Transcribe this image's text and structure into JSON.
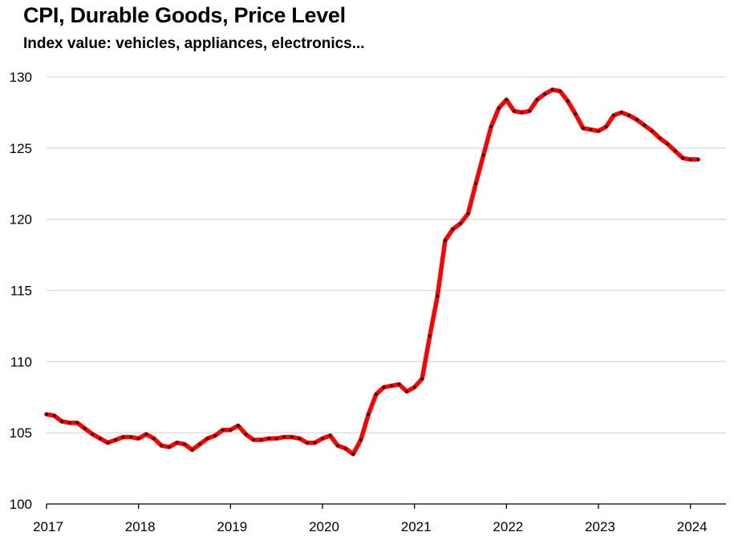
{
  "chart_data": {
    "type": "line",
    "title": "CPI, Durable Goods, Price Level",
    "subtitle": "Index value: vehicles, appliances,  electronics...",
    "xlabel": "",
    "ylabel": "",
    "ylim": [
      100,
      130
    ],
    "xlim": [
      2017.0,
      2024.2
    ],
    "y_ticks": [
      100,
      105,
      110,
      115,
      120,
      125,
      130
    ],
    "x_ticks": [
      2017,
      2018,
      2019,
      2020,
      2021,
      2022,
      2023,
      2024
    ],
    "grid": "horizontal",
    "legend": "none",
    "colors": {
      "line": "#ff0000",
      "marker": "#1a1a1a",
      "grid": "#d9d9d9",
      "axis": "#000000"
    },
    "series": [
      {
        "x": [
          "2017-01",
          "2017-02",
          "2017-03",
          "2017-04",
          "2017-05",
          "2017-06",
          "2017-07",
          "2017-08",
          "2017-09",
          "2017-10",
          "2017-11",
          "2017-12",
          "2018-01",
          "2018-02",
          "2018-03",
          "2018-04",
          "2018-05",
          "2018-06",
          "2018-07",
          "2018-08",
          "2018-09",
          "2018-10",
          "2018-11",
          "2018-12",
          "2019-01",
          "2019-02",
          "2019-03",
          "2019-04",
          "2019-05",
          "2019-06",
          "2019-07",
          "2019-08",
          "2019-09",
          "2019-10",
          "2019-11",
          "2019-12",
          "2020-01",
          "2020-02",
          "2020-03",
          "2020-04",
          "2020-05",
          "2020-06",
          "2020-07",
          "2020-08",
          "2020-09",
          "2020-10",
          "2020-11",
          "2020-12",
          "2021-01",
          "2021-02",
          "2021-03",
          "2021-04",
          "2021-05",
          "2021-06",
          "2021-07",
          "2021-08",
          "2021-09",
          "2021-10",
          "2021-11",
          "2021-12",
          "2022-01",
          "2022-02",
          "2022-03",
          "2022-04",
          "2022-05",
          "2022-06",
          "2022-07",
          "2022-08",
          "2022-09",
          "2022-10",
          "2022-11",
          "2022-12",
          "2023-01",
          "2023-02",
          "2023-03",
          "2023-04",
          "2023-05",
          "2023-06",
          "2023-07",
          "2023-08",
          "2023-09",
          "2023-10",
          "2023-11",
          "2023-12",
          "2024-01",
          "2024-02"
        ],
        "values": [
          106.3,
          106.2,
          105.8,
          105.7,
          105.7,
          105.3,
          104.9,
          104.6,
          104.3,
          104.5,
          104.7,
          104.7,
          104.6,
          104.9,
          104.6,
          104.1,
          104.0,
          104.3,
          104.2,
          103.8,
          104.2,
          104.6,
          104.8,
          105.2,
          105.2,
          105.5,
          104.9,
          104.5,
          104.5,
          104.6,
          104.6,
          104.7,
          104.7,
          104.6,
          104.3,
          104.3,
          104.6,
          104.8,
          104.1,
          103.9,
          103.5,
          104.5,
          106.3,
          107.7,
          108.2,
          108.3,
          108.4,
          107.9,
          108.2,
          108.8,
          111.8,
          114.6,
          118.5,
          119.3,
          119.7,
          120.4,
          122.5,
          124.5,
          126.5,
          127.8,
          128.4,
          127.6,
          127.5,
          127.6,
          128.4,
          128.8,
          129.1,
          129.0,
          128.3,
          127.4,
          126.4,
          126.3,
          126.2,
          126.5,
          127.3,
          127.5,
          127.3,
          127.0,
          126.6,
          126.2,
          125.7,
          125.3,
          124.8,
          124.3,
          124.2,
          124.2
        ]
      }
    ]
  }
}
